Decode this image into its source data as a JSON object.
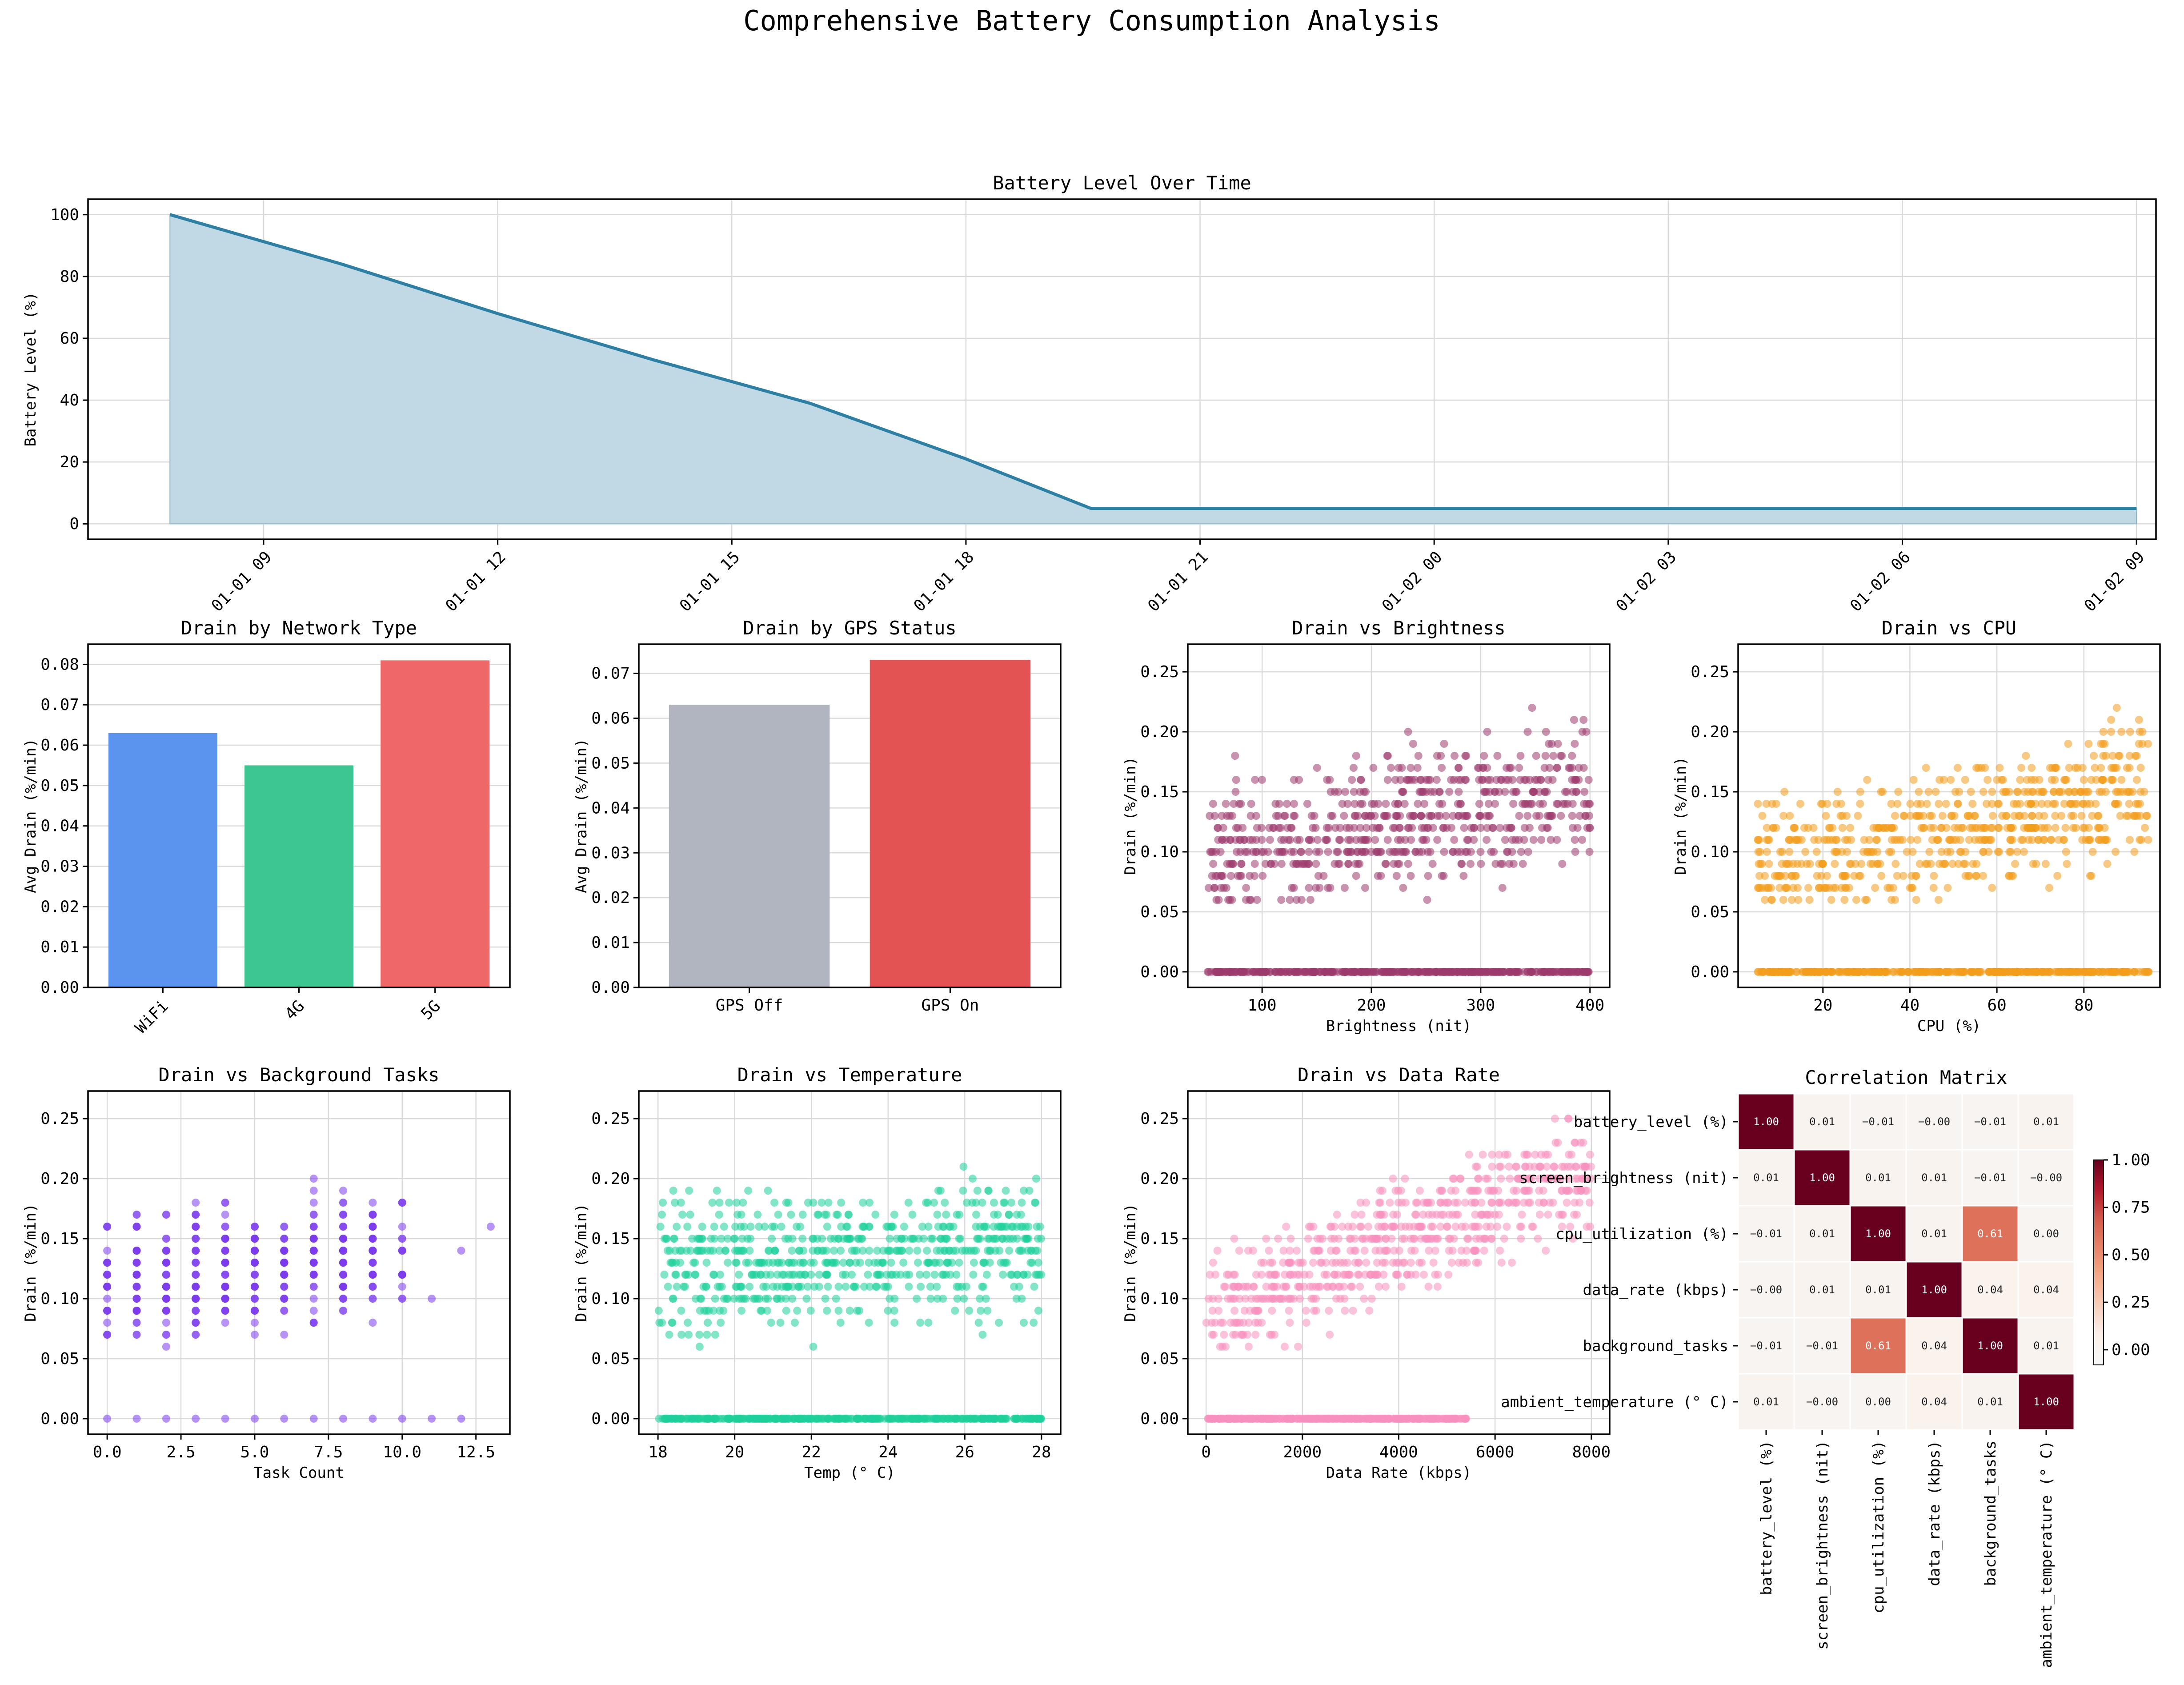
{
  "suptitle": "Comprehensive Battery Consumption Analysis",
  "chart_data": [
    {
      "id": "battery-level",
      "type": "area",
      "title": "Battery Level Over Time",
      "xlabel": "",
      "ylabel": "Battery Level (%)",
      "ylim": [
        -5,
        105
      ],
      "yticks": [
        0,
        20,
        40,
        60,
        80,
        100
      ],
      "xlim_hours": [
        6.75,
        33.25
      ],
      "xtick_hours": [
        9,
        12,
        15,
        18,
        21,
        24,
        27,
        30,
        33
      ],
      "xtick_labels": [
        "01-01 09",
        "01-01 12",
        "01-01 15",
        "01-01 18",
        "01-01 21",
        "01-02 00",
        "01-02 03",
        "01-02 06",
        "01-02 09"
      ],
      "series": {
        "x_hours": [
          7.8,
          10,
          12,
          14,
          16,
          18,
          19.6,
          33.0
        ],
        "y": [
          100,
          84,
          68,
          53,
          39,
          21,
          5,
          5
        ]
      },
      "line_color": "#2e7fa4",
      "fill_color": "#c0d9e4",
      "grid": true
    },
    {
      "id": "drain-network",
      "type": "bar",
      "title": "Drain by Network Type",
      "ylabel": "Avg Drain (%/min)",
      "categories": [
        "WiFi",
        "4G",
        "5G"
      ],
      "values": [
        0.063,
        0.055,
        0.081
      ],
      "colors": [
        "#5b94ee",
        "#3dc592",
        "#ef6868"
      ],
      "ylim": [
        0,
        0.085
      ],
      "yticks": [
        0.0,
        0.01,
        0.02,
        0.03,
        0.04,
        0.05,
        0.06,
        0.07,
        0.08
      ],
      "ytick_labels": [
        "0.00",
        "0.01",
        "0.02",
        "0.03",
        "0.04",
        "0.05",
        "0.06",
        "0.07",
        "0.08"
      ],
      "rotate_xticks": true
    },
    {
      "id": "drain-gps",
      "type": "bar",
      "title": "Drain by GPS Status",
      "ylabel": "Avg Drain (%/min)",
      "categories": [
        "GPS Off",
        "GPS On"
      ],
      "values": [
        0.063,
        0.073
      ],
      "colors": [
        "#b0b5bf",
        "#e35353"
      ],
      "ylim": [
        0,
        0.0765
      ],
      "yticks": [
        0.0,
        0.01,
        0.02,
        0.03,
        0.04,
        0.05,
        0.06,
        0.07
      ],
      "ytick_labels": [
        "0.00",
        "0.01",
        "0.02",
        "0.03",
        "0.04",
        "0.05",
        "0.06",
        "0.07"
      ],
      "rotate_xticks": false
    },
    {
      "id": "drain-brightness",
      "type": "scatter",
      "title": "Drain vs Brightness",
      "xlabel": "Brightness (nit)",
      "ylabel": "Drain (%/min)",
      "xlim": [
        32,
        418
      ],
      "ylim": [
        -0.013,
        0.273
      ],
      "xticks": [
        100,
        200,
        300,
        400
      ],
      "xtick_labels": [
        "100",
        "200",
        "300",
        "400"
      ],
      "yticks": [
        0.0,
        0.05,
        0.1,
        0.15,
        0.2,
        0.25
      ],
      "ytick_labels": [
        "0.00",
        "0.05",
        "0.10",
        "0.15",
        "0.20",
        "0.25"
      ],
      "color": "#9c3a6e",
      "x_range": [
        50,
        400
      ],
      "trend": [
        0.095,
        0.15
      ],
      "spread": 0.06,
      "cap": 0.26,
      "seed": 11
    },
    {
      "id": "drain-cpu",
      "type": "scatter",
      "title": "Drain vs CPU",
      "xlabel": "CPU (%)",
      "ylabel": "Drain (%/min)",
      "xlim": [
        0.5,
        97.5
      ],
      "ylim": [
        -0.013,
        0.273
      ],
      "xticks": [
        20,
        40,
        60,
        80
      ],
      "xtick_labels": [
        "20",
        "40",
        "60",
        "80"
      ],
      "yticks": [
        0.0,
        0.05,
        0.1,
        0.15,
        0.2,
        0.25
      ],
      "ytick_labels": [
        "0.00",
        "0.05",
        "0.10",
        "0.15",
        "0.20",
        "0.25"
      ],
      "color": "#f39c1b",
      "x_range": [
        5,
        95
      ],
      "trend": [
        0.085,
        0.155
      ],
      "spread": 0.06,
      "cap": 0.26,
      "seed": 23
    },
    {
      "id": "drain-tasks",
      "type": "scatter",
      "title": "Drain vs Background Tasks",
      "xlabel": "Task Count",
      "ylabel": "Drain (%/min)",
      "xlim": [
        -0.65,
        13.65
      ],
      "ylim": [
        -0.013,
        0.273
      ],
      "xticks": [
        0.0,
        2.5,
        5.0,
        7.5,
        10.0,
        12.5
      ],
      "xtick_labels": [
        "0.0",
        "2.5",
        "5.0",
        "7.5",
        "10.0",
        "12.5"
      ],
      "yticks": [
        0.0,
        0.05,
        0.1,
        0.15,
        0.2,
        0.25
      ],
      "ytick_labels": [
        "0.00",
        "0.05",
        "0.10",
        "0.15",
        "0.20",
        "0.25"
      ],
      "color": "#7c3aed",
      "x_range": [
        0,
        13
      ],
      "integer_x": true,
      "trend": [
        0.11,
        0.15
      ],
      "spread": 0.055,
      "cap": 0.26,
      "seed": 37
    },
    {
      "id": "drain-temp",
      "type": "scatter",
      "title": "Drain vs Temperature",
      "xlabel": "Temp (° C)",
      "ylabel": "Drain (%/min)",
      "xlim": [
        17.5,
        28.5
      ],
      "ylim": [
        -0.013,
        0.273
      ],
      "xticks": [
        18,
        20,
        22,
        24,
        26,
        28
      ],
      "xtick_labels": [
        "18",
        "20",
        "22",
        "24",
        "26",
        "28"
      ],
      "yticks": [
        0.0,
        0.05,
        0.1,
        0.15,
        0.2,
        0.25
      ],
      "ytick_labels": [
        "0.00",
        "0.05",
        "0.10",
        "0.15",
        "0.20",
        "0.25"
      ],
      "color": "#1ecf9b",
      "x_range": [
        18,
        28
      ],
      "trend": [
        0.125,
        0.14
      ],
      "spread": 0.06,
      "cap": 0.26,
      "seed": 41
    },
    {
      "id": "drain-datarate",
      "type": "scatter",
      "title": "Drain vs Data Rate",
      "xlabel": "Data Rate (kbps)",
      "ylabel": "Drain (%/min)",
      "xlim": [
        -380,
        8380
      ],
      "ylim": [
        -0.013,
        0.273
      ],
      "xticks": [
        0,
        2000,
        4000,
        6000,
        8000
      ],
      "xtick_labels": [
        "0",
        "2000",
        "4000",
        "6000",
        "8000"
      ],
      "yticks": [
        0.0,
        0.05,
        0.1,
        0.15,
        0.2,
        0.25
      ],
      "ytick_labels": [
        "0.00",
        "0.05",
        "0.10",
        "0.15",
        "0.20",
        "0.25"
      ],
      "color": "#f78fbd",
      "x_range": [
        0,
        8000
      ],
      "zero_x_max": 5400,
      "trend": [
        0.09,
        0.21
      ],
      "spread": 0.05,
      "cap": 0.26,
      "seed": 53
    },
    {
      "id": "correlation",
      "type": "heatmap",
      "title": "Correlation Matrix",
      "labels": [
        "battery_level (%)",
        "screen_brightness (nit)",
        "cpu_utilization (%)",
        "data_rate (kbps)",
        "background_tasks",
        "ambient_temperature (° C)"
      ],
      "matrix": [
        [
          1.0,
          0.01,
          -0.01,
          -0.0,
          -0.01,
          0.01
        ],
        [
          0.01,
          1.0,
          0.01,
          0.01,
          -0.01,
          -0.0
        ],
        [
          -0.01,
          0.01,
          1.0,
          0.01,
          0.61,
          0.0
        ],
        [
          -0.0,
          0.01,
          0.01,
          1.0,
          0.04,
          0.04
        ],
        [
          -0.01,
          -0.01,
          0.61,
          0.04,
          1.0,
          0.01
        ],
        [
          0.01,
          -0.0,
          0.0,
          0.04,
          0.01,
          1.0
        ]
      ],
      "cell_text": [
        [
          "1.00",
          "0.01",
          "−0.01",
          "−0.00",
          "−0.01",
          "0.01"
        ],
        [
          "0.01",
          "1.00",
          "0.01",
          "0.01",
          "−0.01",
          "−0.00"
        ],
        [
          "−0.01",
          "0.01",
          "1.00",
          "0.01",
          "0.61",
          "0.00"
        ],
        [
          "−0.00",
          "0.01",
          "0.01",
          "1.00",
          "0.04",
          "0.04"
        ],
        [
          "−0.01",
          "−0.01",
          "0.61",
          "0.04",
          "1.00",
          "0.01"
        ],
        [
          "0.01",
          "−0.00",
          "0.00",
          "0.04",
          "0.01",
          "1.00"
        ]
      ],
      "colorbar_ticks": [
        0.0,
        0.25,
        0.5,
        0.75,
        1.0
      ],
      "colorbar_labels": [
        "0.00",
        "0.25",
        "0.50",
        "0.75",
        "1.00"
      ],
      "vmin": -0.08,
      "vmax": 1.0
    }
  ]
}
